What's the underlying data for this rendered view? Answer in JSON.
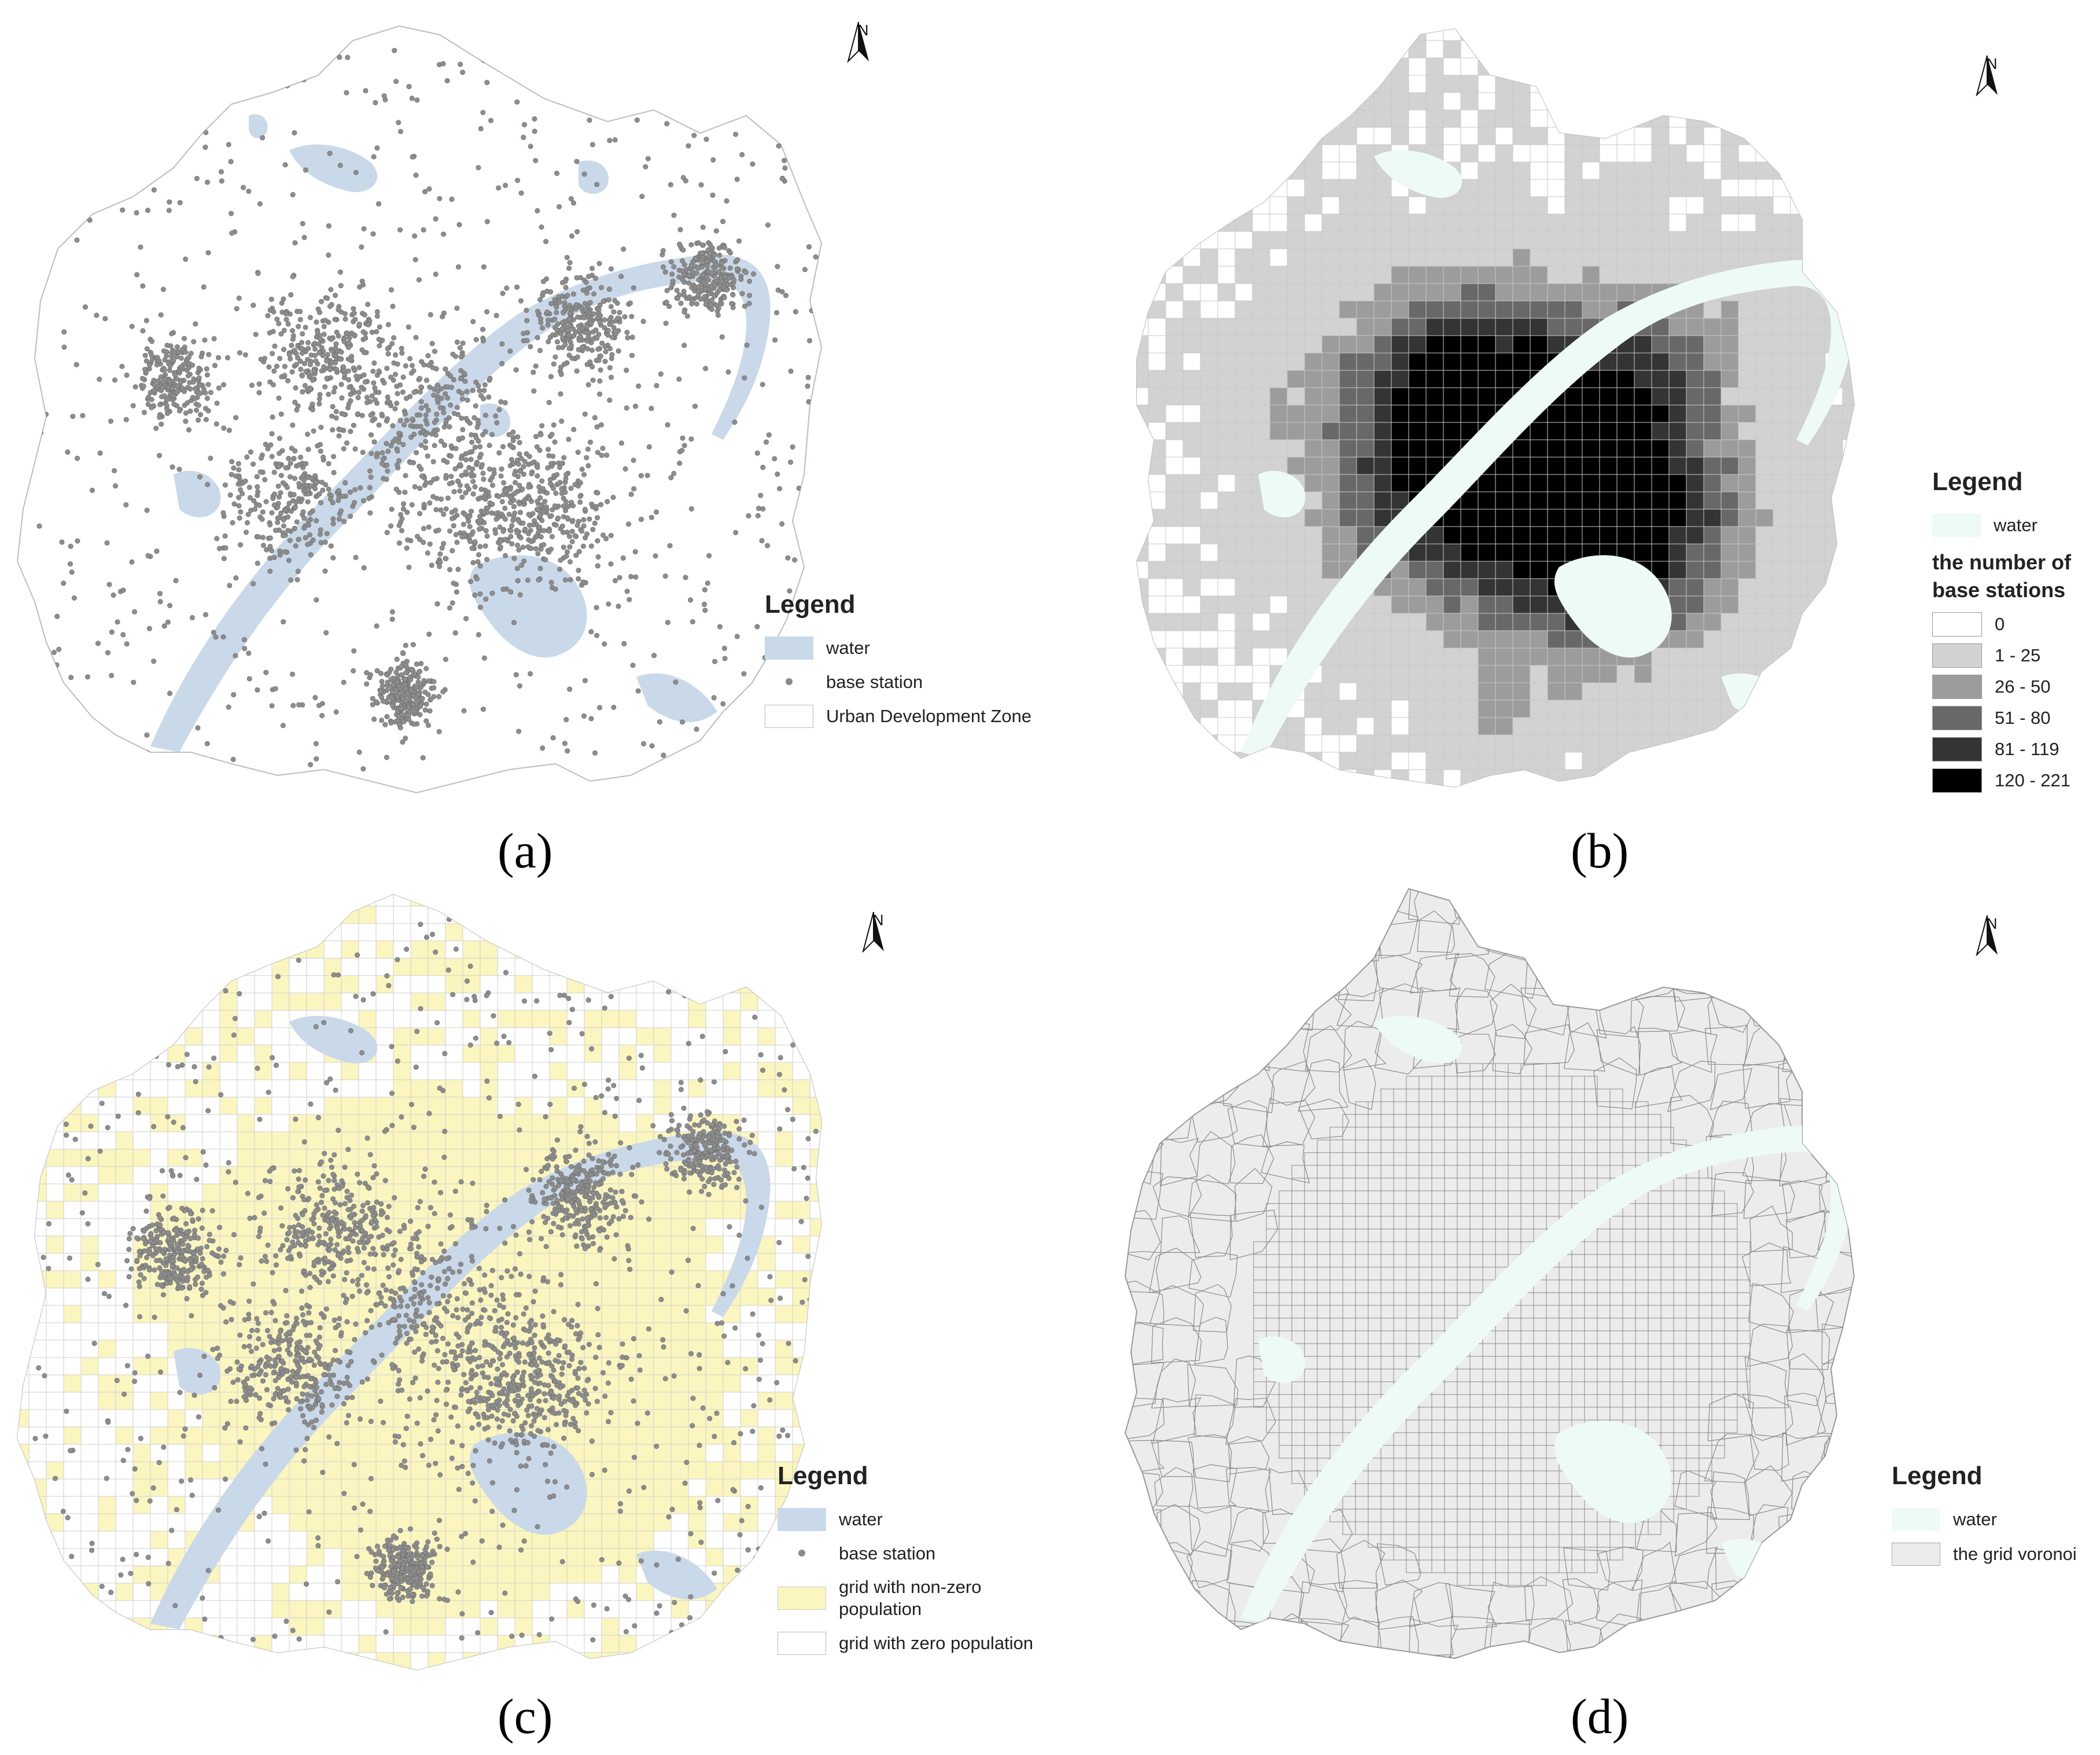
{
  "panels": [
    {
      "id": "a",
      "caption": "(a)",
      "north": "N",
      "legend": {
        "title": "Legend",
        "items": [
          {
            "label": "water",
            "kind": "fill",
            "color": "#c9d9ea"
          },
          {
            "label": "base station",
            "kind": "dot",
            "color": "#8a8a8a"
          },
          {
            "label": "Urban Development Zone",
            "kind": "outline",
            "color": "#ffffff"
          }
        ]
      }
    },
    {
      "id": "b",
      "caption": "(b)",
      "north": "N",
      "legend": {
        "title": "Legend",
        "items": [
          {
            "label": "water",
            "kind": "fill",
            "color": "#eefaf6"
          }
        ],
        "subtitle": "the number of base stations",
        "classes": [
          {
            "label": "0",
            "color": "#ffffff"
          },
          {
            "label": "1 - 25",
            "color": "#d2d2d2"
          },
          {
            "label": "26 - 50",
            "color": "#9c9c9c"
          },
          {
            "label": "51 - 80",
            "color": "#686868"
          },
          {
            "label": "81 - 119",
            "color": "#343434"
          },
          {
            "label": "120 - 221",
            "color": "#000000"
          }
        ]
      }
    },
    {
      "id": "c",
      "caption": "(c)",
      "north": "N",
      "legend": {
        "title": "Legend",
        "items": [
          {
            "label": "water",
            "kind": "fill",
            "color": "#c9d9ea"
          },
          {
            "label": "base station",
            "kind": "dot",
            "color": "#8a8a8a"
          },
          {
            "label": "grid with non-zero population",
            "kind": "fill",
            "color": "#fbf6bf"
          },
          {
            "label": "grid with zero population",
            "kind": "outline",
            "color": "#ffffff"
          }
        ]
      }
    },
    {
      "id": "d",
      "caption": "(d)",
      "north": "N",
      "legend": {
        "title": "Legend",
        "items": [
          {
            "label": "water",
            "kind": "fill",
            "color": "#eefaf6"
          },
          {
            "label": "the grid voronoi",
            "kind": "fill",
            "color": "#ececec"
          }
        ]
      }
    }
  ]
}
